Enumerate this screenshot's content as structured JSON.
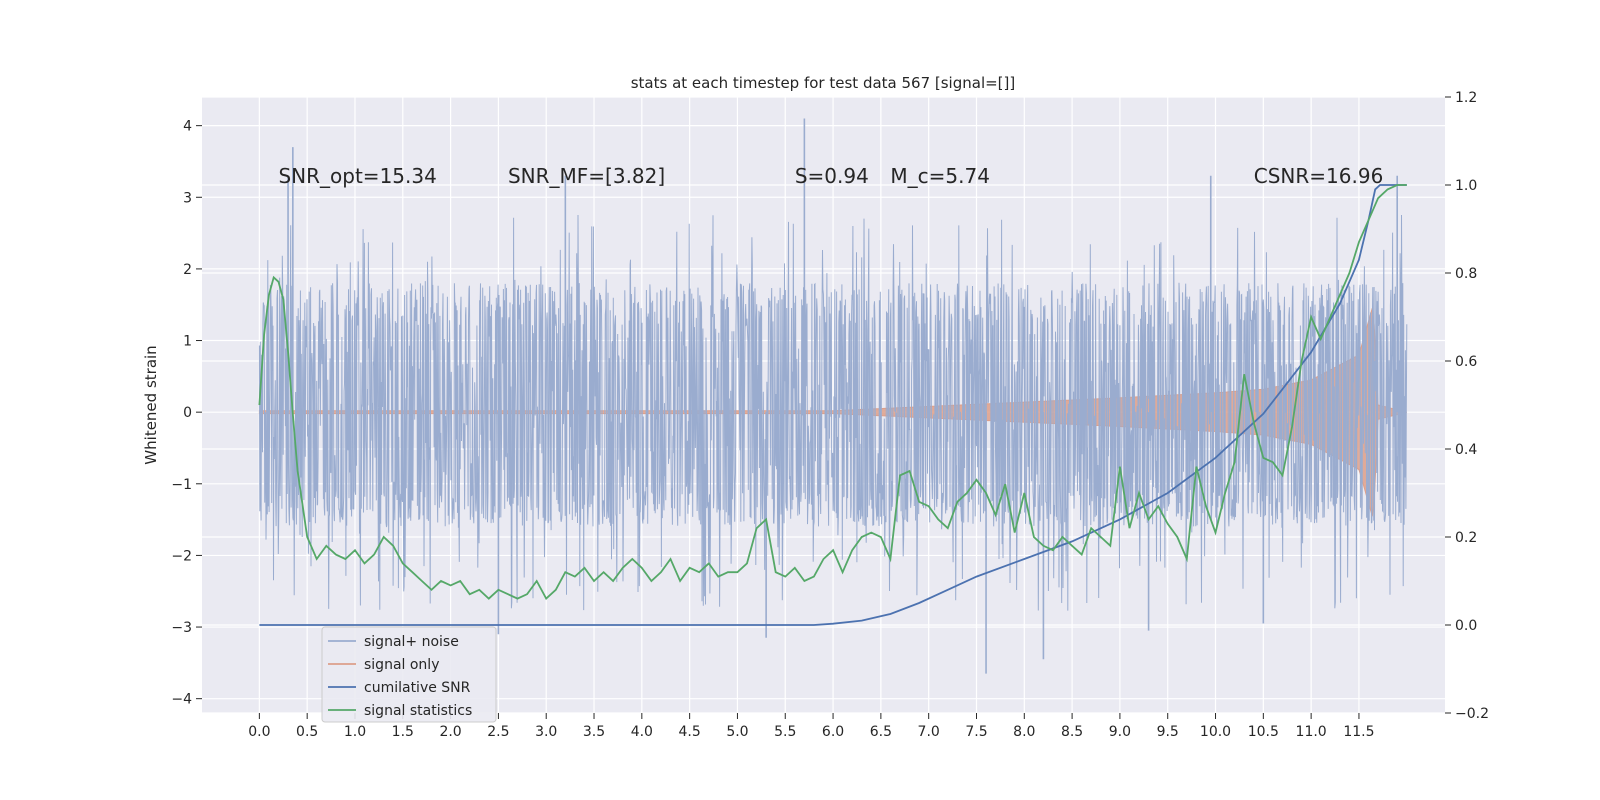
{
  "chart_data": {
    "type": "line",
    "title": "stats at each timestep for test data 567 [signal=[]]",
    "ylabel": "Whitened strain",
    "xlabel": "",
    "xlim": [
      -0.6,
      12.4
    ],
    "ylim": [
      -4.2,
      4.4
    ],
    "y2lim": [
      -0.2,
      1.2
    ],
    "x_ticks": [
      0.0,
      0.5,
      1.0,
      1.5,
      2.0,
      2.5,
      3.0,
      3.5,
      4.0,
      4.5,
      5.0,
      5.5,
      6.0,
      6.5,
      7.0,
      7.5,
      8.0,
      8.5,
      9.0,
      9.5,
      10.0,
      10.5,
      11.0,
      11.5
    ],
    "x_tick_labels": [
      "0.0",
      "0.5",
      "1.0",
      "1.5",
      "2.0",
      "2.5",
      "3.0",
      "3.5",
      "4.0",
      "4.5",
      "5.0",
      "5.5",
      "6.0",
      "6.5",
      "7.0",
      "7.5",
      "8.0",
      "8.5",
      "9.0",
      "9.5",
      "10.0",
      "10.5",
      "11.0",
      "11.5"
    ],
    "y_ticks": [
      -4,
      -3,
      -2,
      -1,
      0,
      1,
      2,
      3,
      4
    ],
    "y_tick_labels": [
      "−4",
      "−3",
      "−2",
      "−1",
      "0",
      "1",
      "2",
      "3",
      "4"
    ],
    "y2_ticks": [
      -0.2,
      0.0,
      0.2,
      0.4,
      0.6,
      0.8,
      1.0,
      1.2
    ],
    "y2_tick_labels": [
      "−0.2",
      "0.0",
      "0.2",
      "0.4",
      "0.6",
      "0.8",
      "1.0",
      "1.2"
    ],
    "grid": true,
    "legend_position": "lower-left",
    "annotations": [
      {
        "text": "SNR_opt=15.34",
        "x": 0.2,
        "y": 3.3
      },
      {
        "text": "SNR_MF=[3.82]",
        "x": 2.6,
        "y": 3.3
      },
      {
        "text": "S=0.94",
        "x": 5.6,
        "y": 3.3
      },
      {
        "text": "M_c=5.74",
        "x": 6.6,
        "y": 3.3
      },
      {
        "text": "CSNR=16.96",
        "x": 10.4,
        "y": 3.3
      }
    ],
    "series": [
      {
        "name": "signal+ noise",
        "axis": "left",
        "color": "#9aaccf",
        "kind": "noise",
        "x_range": [
          0.0,
          12.0
        ],
        "typical_band": [
          -1.6,
          1.8
        ],
        "peaks": [
          {
            "x": 0.35,
            "y": 3.7
          },
          {
            "x": 0.3,
            "y": 3.3
          },
          {
            "x": 3.2,
            "y": 3.3
          },
          {
            "x": 5.7,
            "y": 4.1
          },
          {
            "x": 9.95,
            "y": 3.3
          },
          {
            "x": 11.9,
            "y": 3.3
          },
          {
            "x": 7.6,
            "y": -3.65
          },
          {
            "x": 8.2,
            "y": -3.45
          },
          {
            "x": 9.3,
            "y": -3.05
          },
          {
            "x": 5.3,
            "y": -3.15
          },
          {
            "x": 10.5,
            "y": -2.95
          },
          {
            "x": 2.5,
            "y": -3.1
          }
        ]
      },
      {
        "name": "signal only",
        "axis": "left",
        "color": "#dd9f8a",
        "kind": "chirp",
        "x_range": [
          0.0,
          12.0
        ],
        "envelope": [
          [
            0,
            0.02
          ],
          [
            6,
            0.02
          ],
          [
            6.5,
            0.05
          ],
          [
            7,
            0.08
          ],
          [
            8,
            0.14
          ],
          [
            9,
            0.2
          ],
          [
            10,
            0.27
          ],
          [
            10.5,
            0.32
          ],
          [
            11,
            0.45
          ],
          [
            11.5,
            0.8
          ],
          [
            11.65,
            1.5
          ],
          [
            11.7,
            0.1
          ],
          [
            12,
            0.0
          ]
        ]
      },
      {
        "name": "cumilative SNR",
        "axis": "right",
        "color": "#4c72b0",
        "x": [
          0.0,
          5.8,
          6.0,
          6.3,
          6.6,
          6.9,
          7.2,
          7.5,
          8.0,
          8.5,
          9.0,
          9.5,
          10.0,
          10.5,
          11.0,
          11.3,
          11.5,
          11.6,
          11.67,
          11.72,
          11.8,
          12.0
        ],
        "y": [
          0.0,
          0.0,
          0.003,
          0.01,
          0.025,
          0.05,
          0.08,
          0.11,
          0.15,
          0.19,
          0.24,
          0.3,
          0.38,
          0.48,
          0.62,
          0.73,
          0.83,
          0.92,
          0.99,
          1.0,
          1.0,
          1.0
        ]
      },
      {
        "name": "signal statistics",
        "axis": "right",
        "color": "#55a868",
        "x": [
          0.0,
          0.05,
          0.1,
          0.15,
          0.2,
          0.25,
          0.3,
          0.35,
          0.4,
          0.5,
          0.6,
          0.7,
          0.8,
          0.9,
          1.0,
          1.1,
          1.2,
          1.3,
          1.4,
          1.5,
          1.6,
          1.7,
          1.8,
          1.9,
          2.0,
          2.1,
          2.2,
          2.3,
          2.4,
          2.5,
          2.6,
          2.7,
          2.8,
          2.9,
          3.0,
          3.1,
          3.2,
          3.3,
          3.4,
          3.5,
          3.6,
          3.7,
          3.8,
          3.9,
          4.0,
          4.1,
          4.2,
          4.3,
          4.4,
          4.5,
          4.6,
          4.7,
          4.8,
          4.9,
          5.0,
          5.1,
          5.2,
          5.3,
          5.4,
          5.5,
          5.6,
          5.7,
          5.8,
          5.9,
          6.0,
          6.1,
          6.2,
          6.3,
          6.4,
          6.5,
          6.6,
          6.7,
          6.8,
          6.9,
          7.0,
          7.1,
          7.2,
          7.3,
          7.4,
          7.5,
          7.6,
          7.7,
          7.8,
          7.9,
          8.0,
          8.1,
          8.2,
          8.3,
          8.4,
          8.5,
          8.6,
          8.7,
          8.8,
          8.9,
          9.0,
          9.1,
          9.2,
          9.3,
          9.4,
          9.5,
          9.6,
          9.7,
          9.8,
          9.9,
          10.0,
          10.1,
          10.2,
          10.3,
          10.4,
          10.5,
          10.6,
          10.7,
          10.8,
          10.9,
          11.0,
          11.1,
          11.2,
          11.3,
          11.4,
          11.5,
          11.6,
          11.7,
          11.8,
          11.9,
          12.0
        ],
        "y": [
          0.5,
          0.66,
          0.75,
          0.79,
          0.78,
          0.74,
          0.62,
          0.48,
          0.35,
          0.2,
          0.15,
          0.18,
          0.16,
          0.15,
          0.17,
          0.14,
          0.16,
          0.2,
          0.18,
          0.14,
          0.12,
          0.1,
          0.08,
          0.1,
          0.09,
          0.1,
          0.07,
          0.08,
          0.06,
          0.08,
          0.07,
          0.06,
          0.07,
          0.1,
          0.06,
          0.08,
          0.12,
          0.11,
          0.13,
          0.1,
          0.12,
          0.1,
          0.13,
          0.15,
          0.13,
          0.1,
          0.12,
          0.15,
          0.1,
          0.13,
          0.12,
          0.14,
          0.11,
          0.12,
          0.12,
          0.14,
          0.22,
          0.24,
          0.12,
          0.11,
          0.13,
          0.1,
          0.11,
          0.15,
          0.17,
          0.12,
          0.17,
          0.2,
          0.21,
          0.2,
          0.15,
          0.34,
          0.35,
          0.28,
          0.27,
          0.24,
          0.22,
          0.28,
          0.3,
          0.33,
          0.3,
          0.25,
          0.32,
          0.21,
          0.3,
          0.2,
          0.18,
          0.17,
          0.2,
          0.18,
          0.16,
          0.22,
          0.2,
          0.18,
          0.36,
          0.22,
          0.3,
          0.24,
          0.27,
          0.23,
          0.2,
          0.15,
          0.36,
          0.27,
          0.21,
          0.3,
          0.37,
          0.57,
          0.46,
          0.38,
          0.37,
          0.34,
          0.45,
          0.6,
          0.7,
          0.65,
          0.7,
          0.75,
          0.8,
          0.87,
          0.92,
          0.97,
          0.99,
          1.0,
          1.0
        ]
      }
    ]
  }
}
